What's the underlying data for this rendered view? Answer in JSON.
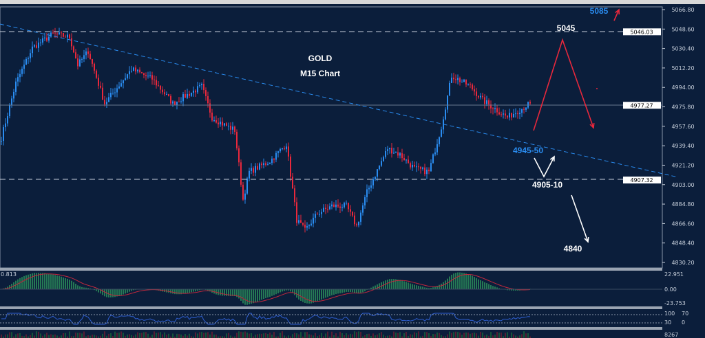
{
  "chart_data": {
    "type": "candlestick",
    "title": "GOLD",
    "subtitle": "M15 Chart",
    "ylim": [
      4825,
      5072
    ],
    "y_ticks": [
      "5066.80",
      "5048.60",
      "5030.40",
      "5012.20",
      "4994.00",
      "4975.80",
      "4957.60",
      "4939.40",
      "4921.20",
      "4903.00",
      "4884.80",
      "4866.60",
      "4848.40",
      "4830.20"
    ],
    "price_path": [
      [
        0,
        4947
      ],
      [
        7,
        4998
      ],
      [
        15,
        5031
      ],
      [
        25,
        5044
      ],
      [
        33,
        5041
      ],
      [
        37,
        5015
      ],
      [
        42,
        5028
      ],
      [
        50,
        4979
      ],
      [
        63,
        5011
      ],
      [
        73,
        5002
      ],
      [
        83,
        4979
      ],
      [
        97,
        4995
      ],
      [
        102,
        4966
      ],
      [
        107,
        4960
      ],
      [
        113,
        4954
      ],
      [
        117,
        4889
      ],
      [
        120,
        4915
      ],
      [
        130,
        4925
      ],
      [
        138,
        4941
      ],
      [
        143,
        4870
      ],
      [
        147,
        4860
      ],
      [
        153,
        4876
      ],
      [
        160,
        4883
      ],
      [
        167,
        4883
      ],
      [
        172,
        4864
      ],
      [
        177,
        4896
      ],
      [
        187,
        4937
      ],
      [
        193,
        4931
      ],
      [
        200,
        4918
      ],
      [
        207,
        4915
      ],
      [
        213,
        4957
      ],
      [
        218,
        5005
      ],
      [
        227,
        4995
      ],
      [
        233,
        4982
      ],
      [
        245,
        4966
      ],
      [
        250,
        4972
      ],
      [
        256,
        4979
      ]
    ],
    "price_labels": {
      "resistance": "5046.03",
      "current": "4977.27",
      "support": "4907.32"
    },
    "annotations": {
      "target_high": "5085",
      "level_5045": "5045",
      "level_4945": "4945-50",
      "level_4905": "4905-10",
      "level_4840": "4840"
    },
    "macd": {
      "label_left": "0.813",
      "ticks": [
        "22.951",
        "0.00",
        "-23.753"
      ]
    },
    "rsi": {
      "ticks": [
        "100",
        "70",
        "30",
        "0"
      ]
    },
    "volume": {
      "tick": "8267"
    },
    "colors": {
      "bull": "#2a8cf0",
      "bear": "#e8283c",
      "background": "#0b1e3b",
      "macd_hist": "#3fd36c",
      "signal": "#c0283c",
      "rsi": "#2f5fd0",
      "trend": "#2a8cf0"
    }
  }
}
